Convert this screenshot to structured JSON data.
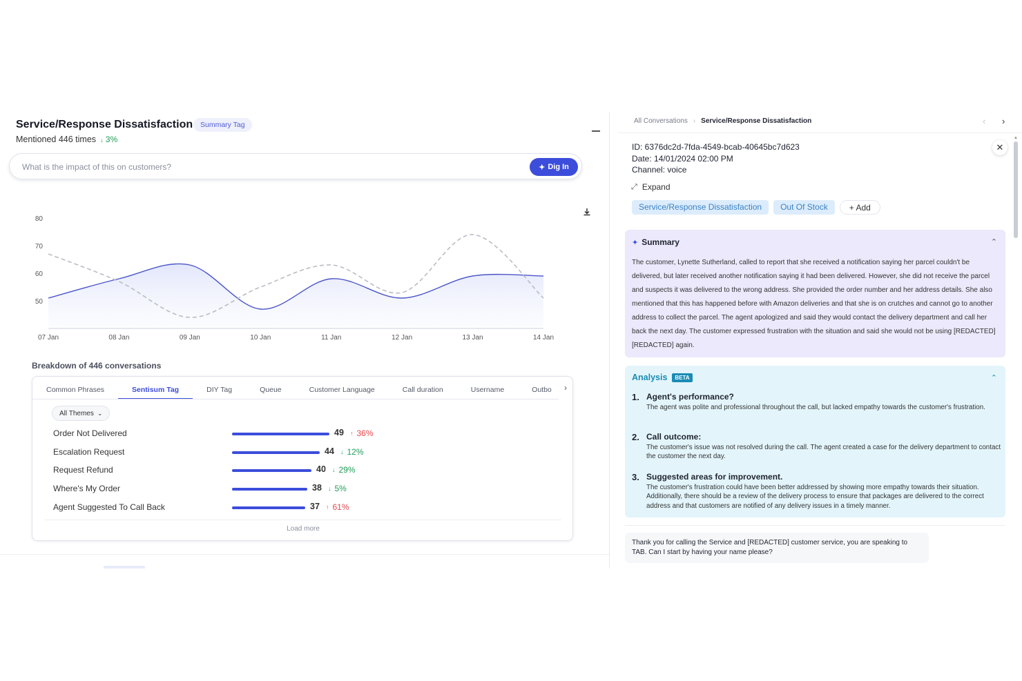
{
  "left": {
    "title": "Service/Response Dissatisfaction",
    "tag_chip": "Summary Tag",
    "mentioned": "Mentioned 446 times",
    "mentioned_change": "3%",
    "search_placeholder": "What is the impact of this on customers?",
    "dig_in_label": "Dig In",
    "breakdown_title": "Breakdown of 446 conversations",
    "tabs": [
      "Common Phrases",
      "Sentisum Tag",
      "DIY Tag",
      "Queue",
      "Customer Language",
      "Call duration",
      "Username",
      "Outbo"
    ],
    "active_tab": "Sentisum Tag",
    "themes_dropdown": "All Themes",
    "rows": [
      {
        "label": "Order Not Delivered",
        "value": "49",
        "change": "36%",
        "direction": "up",
        "color": "red"
      },
      {
        "label": "Escalation Request",
        "value": "44",
        "change": "12%",
        "direction": "down",
        "color": "green"
      },
      {
        "label": "Request Refund",
        "value": "40",
        "change": "29%",
        "direction": "down",
        "color": "green"
      },
      {
        "label": "Where's My Order",
        "value": "38",
        "change": "5%",
        "direction": "down",
        "color": "green"
      },
      {
        "label": "Agent Suggested To Call Back",
        "value": "37",
        "change": "61%",
        "direction": "up",
        "color": "red"
      }
    ],
    "load_more": "Load more"
  },
  "chart_data": {
    "type": "line",
    "x": [
      "07 Jan",
      "08 Jan",
      "09 Jan",
      "10 Jan",
      "11 Jan",
      "12 Jan",
      "13 Jan",
      "14 Jan"
    ],
    "yticks": [
      50,
      60,
      70,
      80
    ],
    "ylim": [
      40,
      82
    ],
    "series": [
      {
        "style": "solid",
        "color": "#4b55c8",
        "fill": true,
        "values": [
          51,
          58,
          63,
          47,
          58,
          51,
          59,
          59
        ]
      },
      {
        "style": "dashed",
        "color": "#b9bcc4",
        "fill": false,
        "values": [
          67,
          57,
          44,
          55,
          63,
          53,
          74,
          51
        ]
      }
    ]
  },
  "right": {
    "breadcrumb_root": "All Conversations",
    "breadcrumb_current": "Service/Response Dissatisfaction",
    "id_line": "ID: 6376dc2d-7fda-4549-bcab-40645bc7d623",
    "date_line": "Date: 14/01/2024 02:00 PM",
    "channel_line": "Channel: voice",
    "expand_label": "Expand",
    "chips": [
      "Service/Response Dissatisfaction",
      "Out Of Stock"
    ],
    "add_chip": "+ Add",
    "summary_title": "Summary",
    "summary_text": "The customer, Lynette Sutherland, called to report that she received a notification saying her parcel couldn't be delivered, but later received another notification saying it had been delivered. However, she did not receive the parcel and suspects it was delivered to the wrong address. She provided the order number and her address details. She also mentioned that this has happened before with Amazon deliveries and that she is on crutches and cannot go to another address to collect the parcel. The agent apologized and said they would contact the delivery department and call her back the next day. The customer expressed frustration with the situation and said she would not be using [REDACTED] [REDACTED] again.",
    "analysis_title": "Analysis",
    "beta_label": "BETA",
    "analysis_items": [
      {
        "num": "1.",
        "title": "Agent's performance?",
        "body": "The agent was polite and professional throughout the call, but lacked empathy towards the customer's frustration."
      },
      {
        "num": "2.",
        "title": "Call outcome:",
        "body": "The customer's issue was not resolved during the call. The agent created a case for the delivery department to contact the customer the next day."
      },
      {
        "num": "3.",
        "title": "Suggested areas for improvement.",
        "body": "The customer's frustration could have been better addressed by showing more empathy towards their situation. Additionally, there should be a review of the delivery process to ensure that packages are delivered to the correct address and that customers are notified of any delivery issues in a timely manner."
      }
    ],
    "transcript_first": "Thank you for calling the Service and [REDACTED] customer service, you are speaking to TAB. Can I start by having your name please?"
  },
  "colors": {
    "accent": "#3c4ddb",
    "up_red": "#e5484d",
    "down_green": "#1f9d55",
    "summary_bg": "#ebe9fb",
    "analysis_bg": "#e3f5fb"
  }
}
